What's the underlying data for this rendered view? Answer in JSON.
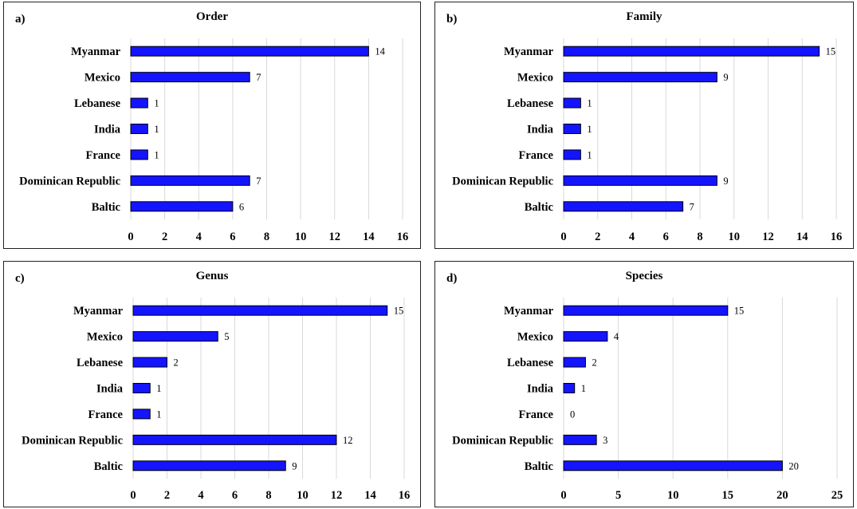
{
  "chart_data": [
    {
      "type": "bar",
      "orientation": "horizontal",
      "panel_label": "a)",
      "title": "Order",
      "categories": [
        "Myanmar",
        "Mexico",
        "Lebanese",
        "India",
        "France",
        "Dominican Republic",
        "Baltic"
      ],
      "values": [
        14,
        7,
        1,
        1,
        1,
        7,
        6
      ],
      "xlim": [
        0,
        16
      ],
      "xticks": [
        0,
        2,
        4,
        6,
        8,
        10,
        12,
        14,
        16
      ],
      "grid": true,
      "color": "#1414ff"
    },
    {
      "type": "bar",
      "orientation": "horizontal",
      "panel_label": "b)",
      "title": "Family",
      "categories": [
        "Myanmar",
        "Mexico",
        "Lebanese",
        "India",
        "France",
        "Dominican Republic",
        "Baltic"
      ],
      "values": [
        15,
        9,
        1,
        1,
        1,
        9,
        7
      ],
      "xlim": [
        0,
        16
      ],
      "xticks": [
        0,
        2,
        4,
        6,
        8,
        10,
        12,
        14,
        16
      ],
      "grid": true,
      "color": "#1414ff"
    },
    {
      "type": "bar",
      "orientation": "horizontal",
      "panel_label": "c)",
      "title": "Genus",
      "categories": [
        "Myanmar",
        "Mexico",
        "Lebanese",
        "India",
        "France",
        "Dominican Republic",
        "Baltic"
      ],
      "values": [
        15,
        5,
        2,
        1,
        1,
        12,
        9
      ],
      "xlim": [
        0,
        16
      ],
      "xticks": [
        0,
        2,
        4,
        6,
        8,
        10,
        12,
        14,
        16
      ],
      "grid": true,
      "color": "#1414ff"
    },
    {
      "type": "bar",
      "orientation": "horizontal",
      "panel_label": "d)",
      "title": "Species",
      "categories": [
        "Myanmar",
        "Mexico",
        "Lebanese",
        "India",
        "France",
        "Dominican Republic",
        "Baltic"
      ],
      "values": [
        15,
        4,
        2,
        1,
        0,
        3,
        20
      ],
      "xlim": [
        0,
        25
      ],
      "xticks": [
        0,
        5,
        10,
        15,
        20,
        25
      ],
      "grid": true,
      "color": "#1414ff"
    }
  ]
}
